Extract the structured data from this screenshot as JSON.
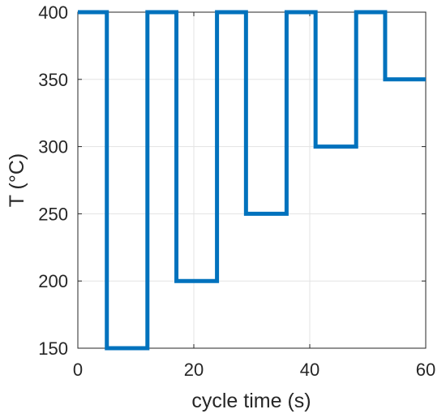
{
  "chart_data": {
    "type": "line",
    "xlabel": "cycle time (s)",
    "ylabel": "T (°C)",
    "xlim": [
      0,
      60
    ],
    "ylim": [
      150,
      400
    ],
    "xticks": [
      0,
      20,
      40,
      60
    ],
    "yticks": [
      150,
      200,
      250,
      300,
      350,
      400
    ],
    "grid": true,
    "series": [
      {
        "color": "#0072bd",
        "x": [
          0,
          5,
          5,
          12,
          12,
          17,
          17,
          24,
          24,
          29,
          29,
          36,
          36,
          41,
          41,
          48,
          48,
          53,
          53,
          60
        ],
        "y": [
          400,
          400,
          150,
          150,
          400,
          400,
          200,
          200,
          400,
          400,
          250,
          250,
          400,
          400,
          300,
          300,
          400,
          400,
          350,
          350
        ]
      }
    ]
  }
}
